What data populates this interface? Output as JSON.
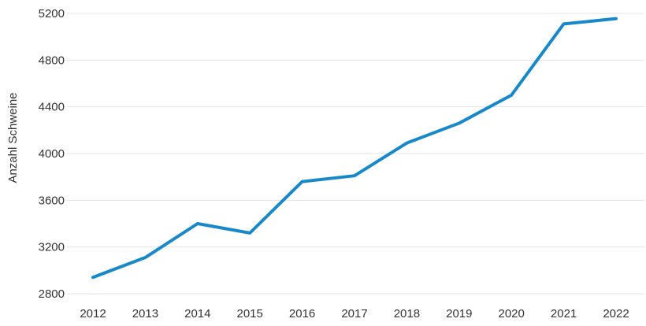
{
  "chart_data": {
    "type": "line",
    "title": "",
    "xlabel": "",
    "ylabel": "Anzahl Schweine",
    "categories": [
      "2012",
      "2013",
      "2014",
      "2015",
      "2016",
      "2017",
      "2018",
      "2019",
      "2020",
      "2021",
      "2022"
    ],
    "series": [
      {
        "name": "Anzahl Schweine",
        "values": [
          2940,
          3110,
          3400,
          3320,
          3760,
          3810,
          4090,
          4260,
          4500,
          5110,
          5155
        ]
      }
    ],
    "ylim": [
      2800,
      5200
    ],
    "yticks": [
      2800,
      3200,
      3600,
      4000,
      4400,
      4800,
      5200
    ],
    "grid": "horizontal",
    "legend": "none",
    "colors": {
      "line": "#1789ca",
      "grid": "#e3e3e3",
      "text": "#333333",
      "background": "#ffffff"
    }
  }
}
